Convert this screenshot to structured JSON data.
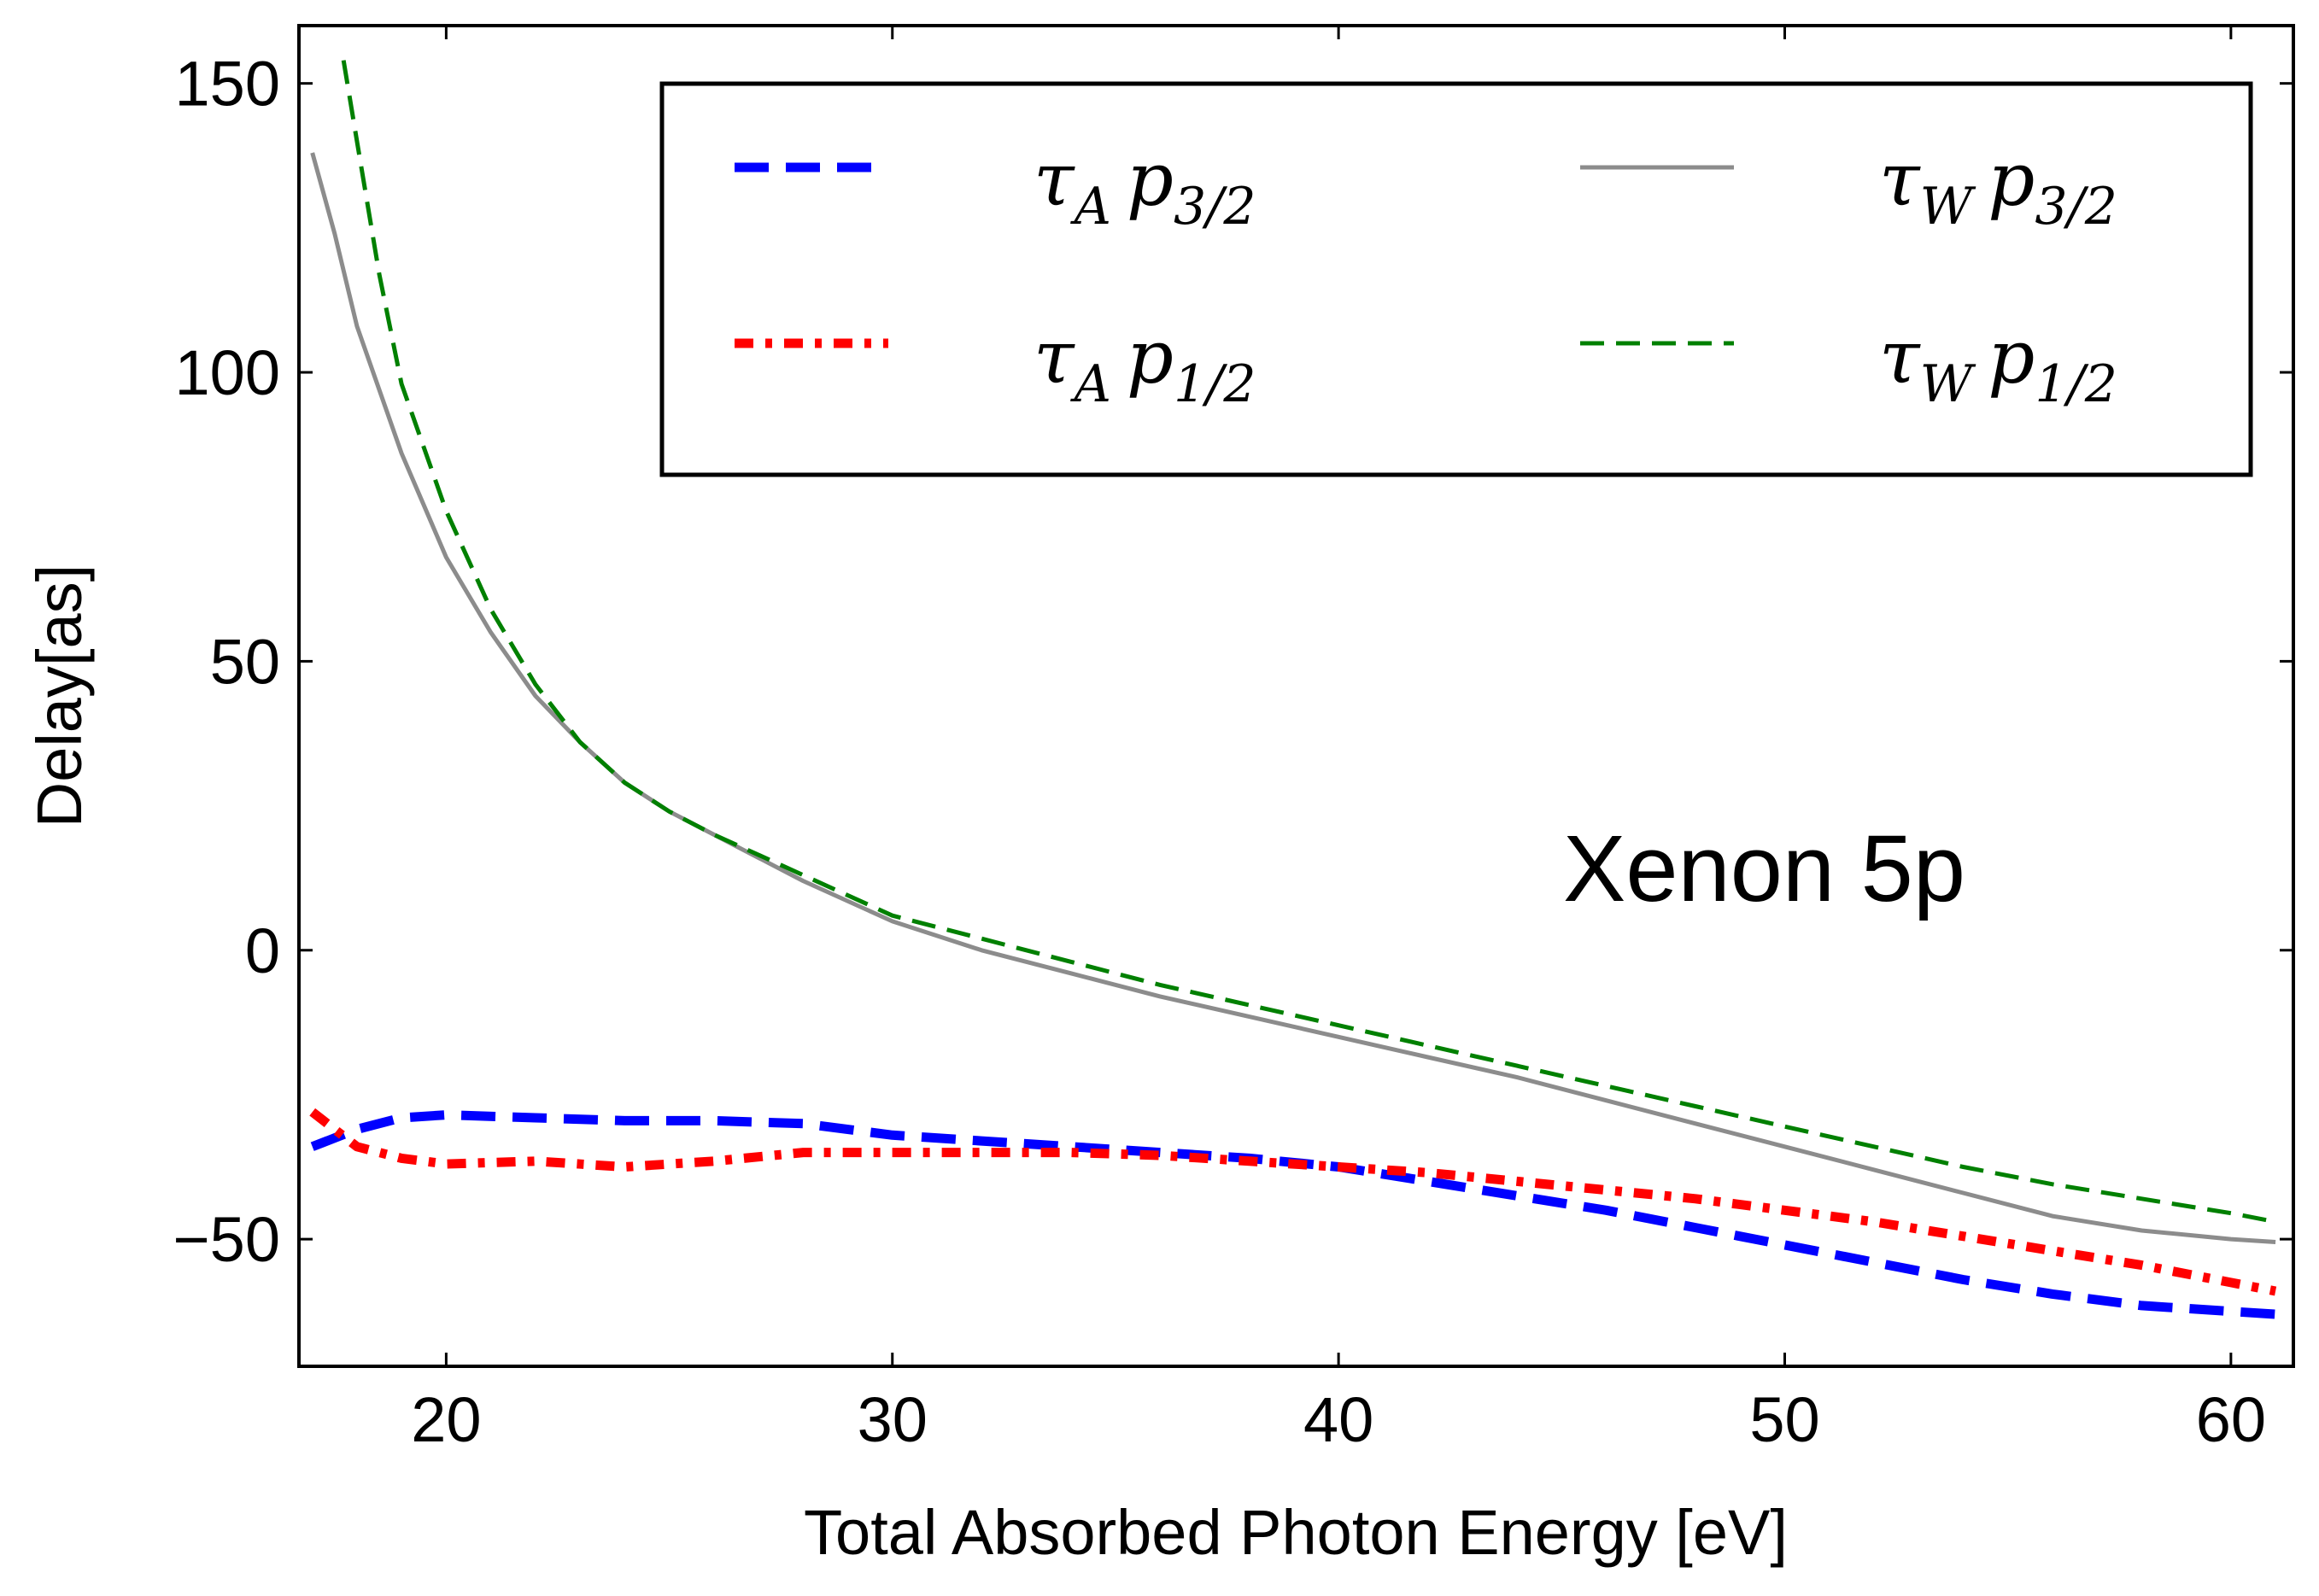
{
  "chart_data": {
    "type": "line",
    "title": "",
    "xlabel": "Total Absorbed Photon Energy [eV]",
    "ylabel": "Delay[as]",
    "xlim": [
      16.7,
      61.4
    ],
    "ylim": [
      -72,
      160
    ],
    "xticks": [
      20,
      30,
      40,
      50,
      60
    ],
    "yticks": [
      150,
      100,
      50,
      0,
      -50
    ],
    "ytick_labels": [
      "150",
      "100",
      "50",
      "0",
      "−50"
    ],
    "grid": false,
    "legend_location": "top-right",
    "annotation": "Xenon 5p",
    "series": [
      {
        "name": "tau_A p_3/2",
        "legend": {
          "sym": "τ",
          "sub1": "A",
          "p": "p",
          "sub2": "3/2"
        },
        "color": "#0000ff",
        "style": "dashed-thick",
        "x": [
          17.0,
          18.0,
          19.0,
          20.0,
          22.0,
          24.0,
          26.0,
          28.0,
          30.0,
          32.0,
          34.0,
          36.0,
          38.0,
          40.0,
          42.0,
          44.0,
          46.0,
          48.0,
          50.0,
          52.0,
          54.0,
          56.0,
          58.0,
          60.0,
          61.0
        ],
        "y": [
          -34,
          -31,
          -29,
          -28.5,
          -29,
          -29.5,
          -29.5,
          -30,
          -32,
          -33,
          -34,
          -35,
          -36,
          -37.5,
          -40,
          -42.5,
          -45,
          -48,
          -51,
          -54,
          -57,
          -59.5,
          -61.5,
          -62.5,
          -63
        ]
      },
      {
        "name": "tau_A p_1/2",
        "legend": {
          "sym": "τ",
          "sub1": "A",
          "p": "p",
          "sub2": "1/2"
        },
        "color": "#ff0000",
        "style": "dashdot-thick",
        "x": [
          17.0,
          17.5,
          18.0,
          19.0,
          20.0,
          22.0,
          24.0,
          26.0,
          28.0,
          30.0,
          32.0,
          34.0,
          36.0,
          38.0,
          40.0,
          42.0,
          44.0,
          46.0,
          48.0,
          50.0,
          52.0,
          54.0,
          56.0,
          58.0,
          60.0,
          61.0
        ],
        "y": [
          -28,
          -31,
          -34,
          -36,
          -37,
          -36.5,
          -37.5,
          -36.5,
          -35,
          -35,
          -35,
          -35,
          -35.5,
          -36.5,
          -37.5,
          -38.5,
          -40,
          -41.5,
          -43,
          -45,
          -47,
          -49.5,
          -52,
          -54.5,
          -57.5,
          -59
        ]
      },
      {
        "name": "tau_W p_3/2",
        "legend": {
          "sym": "τ",
          "sub1": "W",
          "p": "p",
          "sub2": "3/2"
        },
        "color": "#8c8c8c",
        "style": "solid",
        "x": [
          17.0,
          17.5,
          18.0,
          19.0,
          20.0,
          21.0,
          22.0,
          23.0,
          24.0,
          25.0,
          26.0,
          28.0,
          30.0,
          32.0,
          34.0,
          36.0,
          38.0,
          40.0,
          42.0,
          44.0,
          46.0,
          48.0,
          50.0,
          52.0,
          54.0,
          56.0,
          58.0,
          60.0,
          61.0
        ],
        "y": [
          138,
          124,
          108,
          86,
          68,
          55,
          44,
          36,
          29,
          24,
          20,
          12,
          5,
          0,
          -4,
          -8,
          -11.5,
          -15,
          -18.5,
          -22,
          -26,
          -30,
          -34,
          -38,
          -42,
          -46,
          -48.5,
          -50,
          -50.5
        ]
      },
      {
        "name": "tau_W p_1/2",
        "legend": {
          "sym": "τ",
          "sub1": "W",
          "p": "p",
          "sub2": "1/2"
        },
        "color": "#008000",
        "style": "dashed",
        "x": [
          17.7,
          18.0,
          18.5,
          19.0,
          20.0,
          21.0,
          22.0,
          23.0,
          24.0,
          25.0,
          26.0,
          28.0,
          30.0,
          32.0,
          34.0,
          36.0,
          38.0,
          40.0,
          42.0,
          44.0,
          46.0,
          48.0,
          50.0,
          52.0,
          54.0,
          56.0,
          58.0,
          60.0,
          61.0
        ],
        "y": [
          154,
          140,
          117,
          98,
          76,
          59,
          46,
          36,
          29,
          24,
          20,
          13,
          6,
          2,
          -2,
          -6,
          -9.5,
          -13,
          -16.5,
          -20,
          -23.5,
          -27,
          -30.5,
          -34,
          -37.5,
          -40.5,
          -43,
          -45.5,
          -47
        ]
      }
    ]
  }
}
